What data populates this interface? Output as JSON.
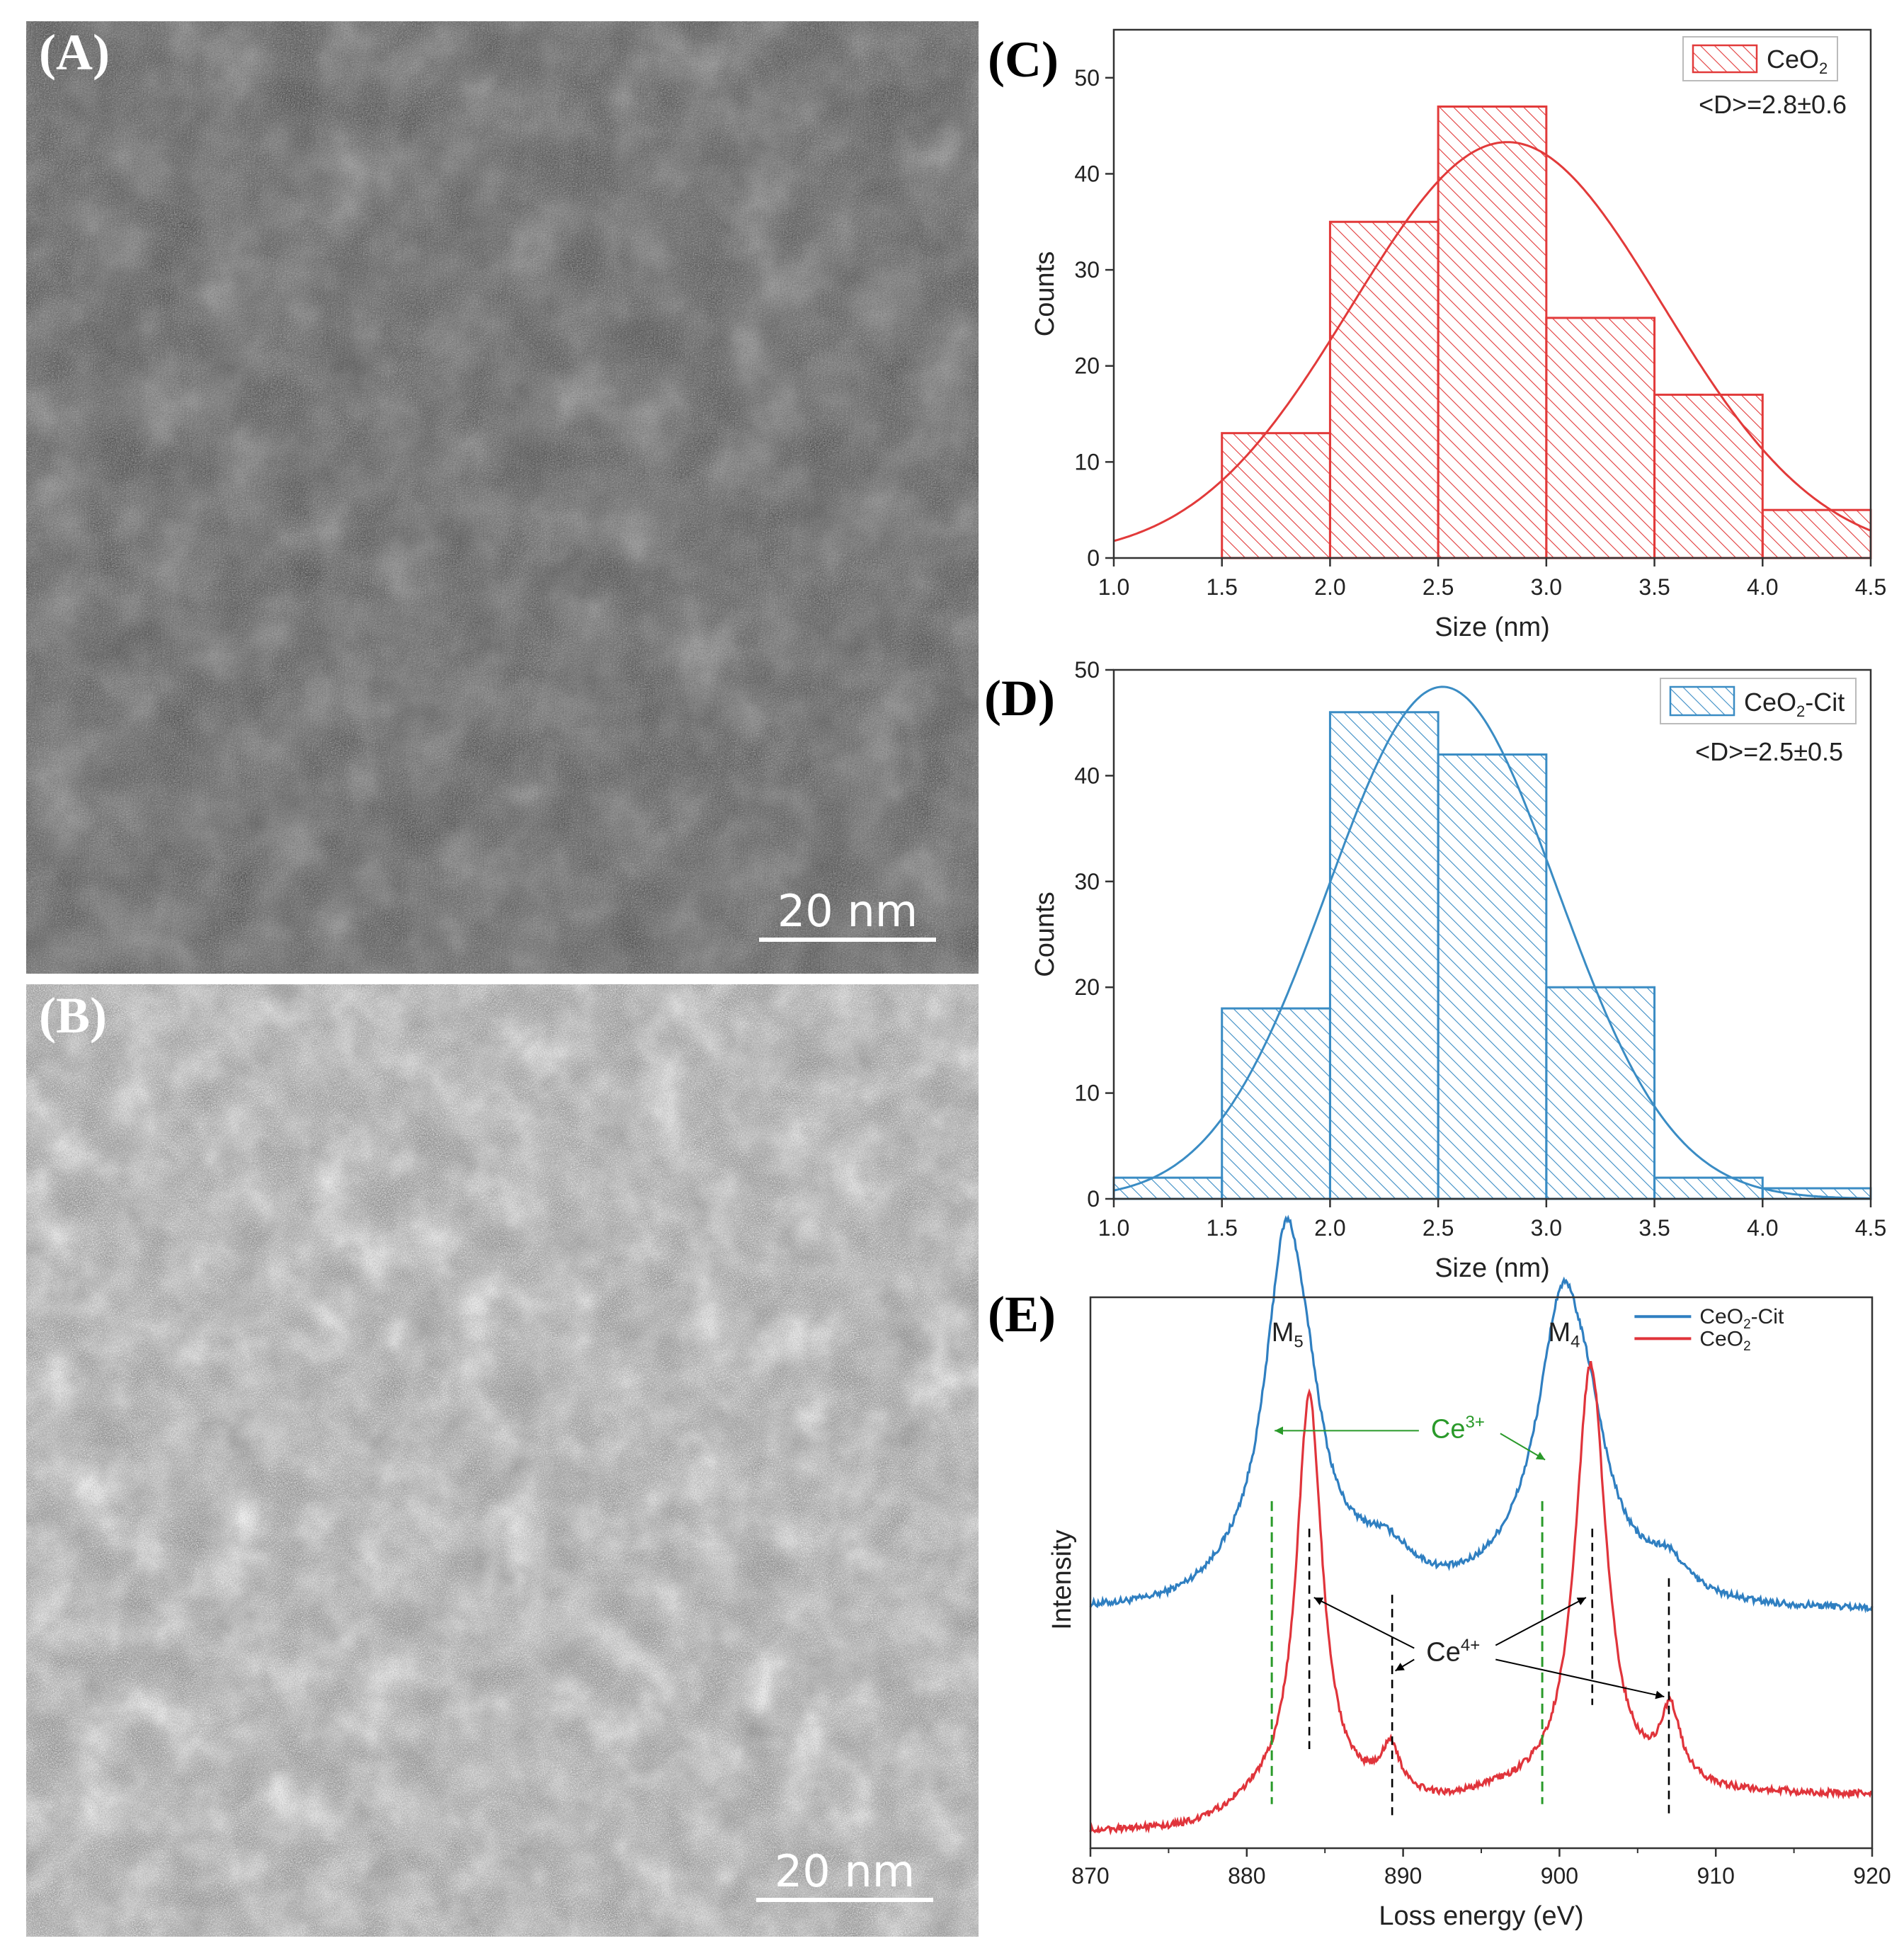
{
  "panels": {
    "A": {
      "label": "(A)",
      "scale_bar": "20 nm"
    },
    "B": {
      "label": "(B)",
      "scale_bar": "20 nm"
    },
    "C": {
      "label": "(C)"
    },
    "D": {
      "label": "(D)"
    },
    "E": {
      "label": "(E)"
    }
  },
  "colors": {
    "red": "#e0343b",
    "blue": "#2f7fc1",
    "green": "#2a9a2a",
    "hist_red": "#e23a3a",
    "hist_blue": "#3a8cc4"
  },
  "chart_data": [
    {
      "id": "C",
      "type": "bar",
      "subtype": "histogram_with_gaussian_fit",
      "bin_edges": [
        1.5,
        2.0,
        2.5,
        3.0,
        3.5,
        4.0,
        4.5
      ],
      "values": [
        13,
        35,
        47,
        25,
        17,
        5
      ],
      "fit": {
        "type": "gaussian",
        "mean": 2.82,
        "sigma": 0.72,
        "peak": 43.3
      },
      "legend": {
        "entry": "CeO",
        "entry_sub": "2",
        "entry_suffix": "",
        "position": "top-right"
      },
      "annotation": "<D>=2.8±0.6",
      "xlabel": "Size (nm)",
      "ylabel": "Counts",
      "xlim": [
        1.0,
        4.5
      ],
      "ylim": [
        0,
        55
      ],
      "xticks": [
        "1.0",
        "1.5",
        "2.0",
        "2.5",
        "3.0",
        "3.5",
        "4.0",
        "4.5"
      ],
      "yticks": [
        "0",
        "10",
        "20",
        "30",
        "40",
        "50"
      ]
    },
    {
      "id": "D",
      "type": "bar",
      "subtype": "histogram_with_gaussian_fit",
      "bin_edges": [
        1.0,
        1.5,
        2.0,
        2.5,
        3.0,
        3.5,
        4.0,
        4.5
      ],
      "values": [
        2,
        18,
        46,
        42,
        20,
        2,
        1
      ],
      "fit": {
        "type": "gaussian",
        "mean": 2.52,
        "sigma": 0.53,
        "peak": 48.4
      },
      "legend": {
        "entry": "CeO",
        "entry_sub": "2",
        "entry_suffix": "-Cit",
        "position": "top-right"
      },
      "annotation": "<D>=2.5±0.5",
      "xlabel": "Size (nm)",
      "ylabel": "Counts",
      "xlim": [
        1.0,
        4.5
      ],
      "ylim": [
        0,
        50
      ],
      "xticks": [
        "1.0",
        "1.5",
        "2.0",
        "2.5",
        "3.0",
        "3.5",
        "4.0",
        "4.5"
      ],
      "yticks": [
        "0",
        "10",
        "20",
        "30",
        "40",
        "50"
      ]
    },
    {
      "id": "E",
      "type": "line",
      "xlabel": "Loss energy (eV)",
      "ylabel": "Intensity",
      "xlim": [
        870,
        920
      ],
      "xticks": [
        "870",
        "880",
        "890",
        "900",
        "910",
        "920"
      ],
      "series": [
        {
          "name": "CeO",
          "name_sub": "2",
          "name_suffix": "-Cit",
          "color": "blue",
          "baseline": 0.43,
          "offset": 0.0,
          "peaks": [
            {
              "center": 882.5,
              "width": 1.6,
              "height": 0.59
            },
            {
              "center": 884.0,
              "width": 1.3,
              "height": 0.12
            },
            {
              "center": 889.0,
              "width": 2.0,
              "height": 0.05
            },
            {
              "center": 900.2,
              "width": 1.9,
              "height": 0.48
            },
            {
              "center": 902.0,
              "width": 1.4,
              "height": 0.12
            },
            {
              "center": 907.0,
              "width": 1.5,
              "height": 0.05
            }
          ]
        },
        {
          "name": "CeO",
          "name_sub": "2",
          "name_suffix": "",
          "color": "red",
          "baseline": 0.0,
          "offset": 0.0,
          "peaks": [
            {
              "center": 884.0,
              "width": 1.0,
              "height": 0.73
            },
            {
              "center": 889.2,
              "width": 0.7,
              "height": 0.08
            },
            {
              "center": 902.0,
              "width": 1.2,
              "height": 0.78
            },
            {
              "center": 907.1,
              "width": 0.8,
              "height": 0.13
            }
          ]
        }
      ],
      "peak_labels": [
        {
          "text": "M",
          "sub": "5",
          "x": 882.6
        },
        {
          "text": "M",
          "sub": "4",
          "x": 900.3
        }
      ],
      "ce3_label": {
        "text": "Ce",
        "sup": "3+",
        "lines_x": [
          881.6,
          898.9
        ]
      },
      "ce4_label": {
        "text": "Ce",
        "sup": "4+",
        "lines_x": [
          884.0,
          889.3,
          902.1,
          907.0
        ]
      }
    }
  ]
}
